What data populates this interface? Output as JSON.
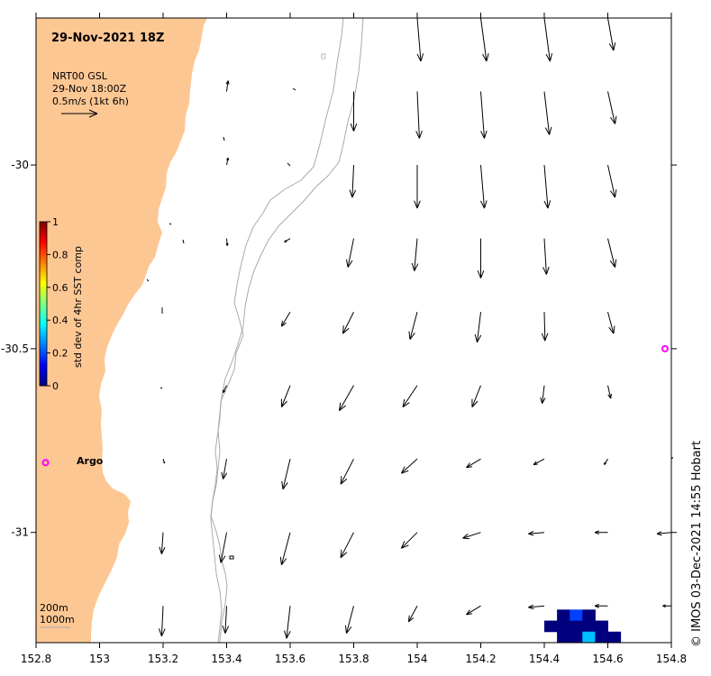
{
  "header": {
    "title": "29-Nov-2021 18Z",
    "product": "NRT00 GSL",
    "time": "29-Nov 18:00Z",
    "scale": "0.5m/s (1kt 6h)"
  },
  "colorbar": {
    "label": "std dev of 4hr SST comp",
    "ticks": [
      "1",
      "0.8",
      "0.6",
      "0.4",
      "0.2",
      "0"
    ]
  },
  "axes": {
    "x_ticks": [
      "152.8",
      "153",
      "153.2",
      "153.4",
      "153.6",
      "153.8",
      "154",
      "154.2",
      "154.4",
      "154.6",
      "154.8"
    ],
    "y_ticks": [
      "-30",
      "-30.5",
      "-31"
    ]
  },
  "markers": {
    "argo_label": "Argo",
    "argo_color": "#ff00ff"
  },
  "legend": {
    "contour_200": "200m",
    "contour_1000": "1000m"
  },
  "credit": "© IMOS 03-Dec-2021 14:55 Hobart",
  "colors": {
    "land": "#fdc794",
    "contour": "#aaaaaa",
    "arrow": "#000000",
    "sst_dark": "#00007f",
    "sst_mid": "#0040ff",
    "sst_light": "#00c0ff"
  },
  "chart_data": {
    "type": "vector-field",
    "xlim": [
      152.8,
      154.8
    ],
    "ylim": [
      -31.3,
      -29.6
    ],
    "colorbar_range": [
      0,
      1
    ],
    "arrows": [
      {
        "lon": 154.0,
        "lat": -29.6,
        "u": 0.05,
        "v": -0.6
      },
      {
        "lon": 154.2,
        "lat": -29.6,
        "u": 0.08,
        "v": -0.6
      },
      {
        "lon": 154.4,
        "lat": -29.6,
        "u": 0.08,
        "v": -0.6
      },
      {
        "lon": 154.6,
        "lat": -29.6,
        "u": 0.08,
        "v": -0.45
      },
      {
        "lon": 153.4,
        "lat": -29.8,
        "u": 0.02,
        "v": 0.15
      },
      {
        "lon": 153.8,
        "lat": -29.8,
        "u": 0.0,
        "v": -0.55
      },
      {
        "lon": 154.0,
        "lat": -29.8,
        "u": 0.03,
        "v": -0.65
      },
      {
        "lon": 154.2,
        "lat": -29.8,
        "u": 0.05,
        "v": -0.65
      },
      {
        "lon": 154.4,
        "lat": -29.8,
        "u": 0.07,
        "v": -0.6
      },
      {
        "lon": 154.6,
        "lat": -29.8,
        "u": 0.1,
        "v": -0.45
      },
      {
        "lon": 153.4,
        "lat": -30.0,
        "u": 0.02,
        "v": 0.1
      },
      {
        "lon": 153.8,
        "lat": -30.0,
        "u": -0.02,
        "v": -0.45
      },
      {
        "lon": 154.0,
        "lat": -30.0,
        "u": 0.0,
        "v": -0.6
      },
      {
        "lon": 154.2,
        "lat": -30.0,
        "u": 0.05,
        "v": -0.6
      },
      {
        "lon": 154.4,
        "lat": -30.0,
        "u": 0.05,
        "v": -0.6
      },
      {
        "lon": 154.6,
        "lat": -30.0,
        "u": 0.1,
        "v": -0.45
      },
      {
        "lon": 153.4,
        "lat": -30.2,
        "u": 0.01,
        "v": -0.1
      },
      {
        "lon": 153.6,
        "lat": -30.2,
        "u": -0.08,
        "v": -0.05
      },
      {
        "lon": 153.8,
        "lat": -30.2,
        "u": -0.08,
        "v": -0.4
      },
      {
        "lon": 154.0,
        "lat": -30.2,
        "u": -0.04,
        "v": -0.45
      },
      {
        "lon": 154.2,
        "lat": -30.2,
        "u": 0.0,
        "v": -0.55
      },
      {
        "lon": 154.4,
        "lat": -30.2,
        "u": 0.03,
        "v": -0.5
      },
      {
        "lon": 154.6,
        "lat": -30.2,
        "u": 0.1,
        "v": -0.4
      },
      {
        "lon": 153.6,
        "lat": -30.4,
        "u": -0.12,
        "v": -0.2
      },
      {
        "lon": 153.8,
        "lat": -30.4,
        "u": -0.15,
        "v": -0.3
      },
      {
        "lon": 154.0,
        "lat": -30.4,
        "u": -0.1,
        "v": -0.38
      },
      {
        "lon": 154.2,
        "lat": -30.4,
        "u": -0.05,
        "v": -0.42
      },
      {
        "lon": 154.4,
        "lat": -30.4,
        "u": 0.01,
        "v": -0.4
      },
      {
        "lon": 154.6,
        "lat": -30.4,
        "u": 0.08,
        "v": -0.3
      },
      {
        "lon": 153.4,
        "lat": -30.6,
        "u": -0.05,
        "v": -0.1
      },
      {
        "lon": 153.6,
        "lat": -30.6,
        "u": -0.12,
        "v": -0.3
      },
      {
        "lon": 153.8,
        "lat": -30.6,
        "u": -0.2,
        "v": -0.35
      },
      {
        "lon": 154.0,
        "lat": -30.6,
        "u": -0.2,
        "v": -0.3
      },
      {
        "lon": 154.2,
        "lat": -30.6,
        "u": -0.12,
        "v": -0.3
      },
      {
        "lon": 154.4,
        "lat": -30.6,
        "u": -0.03,
        "v": -0.25
      },
      {
        "lon": 154.6,
        "lat": -30.6,
        "u": 0.04,
        "v": -0.18
      },
      {
        "lon": 153.2,
        "lat": -30.8,
        "u": 0.02,
        "v": -0.06
      },
      {
        "lon": 153.4,
        "lat": -30.8,
        "u": -0.05,
        "v": -0.28
      },
      {
        "lon": 153.6,
        "lat": -30.8,
        "u": -0.1,
        "v": -0.42
      },
      {
        "lon": 153.8,
        "lat": -30.8,
        "u": -0.18,
        "v": -0.35
      },
      {
        "lon": 154.0,
        "lat": -30.8,
        "u": -0.22,
        "v": -0.2
      },
      {
        "lon": 154.2,
        "lat": -30.8,
        "u": -0.2,
        "v": -0.12
      },
      {
        "lon": 154.4,
        "lat": -30.8,
        "u": -0.15,
        "v": -0.08
      },
      {
        "lon": 154.6,
        "lat": -30.8,
        "u": -0.05,
        "v": -0.08
      },
      {
        "lon": 154.8,
        "lat": -30.8,
        "u": 0.02,
        "v": 0.02
      },
      {
        "lon": 153.2,
        "lat": -31.0,
        "u": -0.02,
        "v": -0.3
      },
      {
        "lon": 153.4,
        "lat": -31.0,
        "u": -0.08,
        "v": -0.42
      },
      {
        "lon": 153.6,
        "lat": -31.0,
        "u": -0.12,
        "v": -0.45
      },
      {
        "lon": 153.8,
        "lat": -31.0,
        "u": -0.18,
        "v": -0.35
      },
      {
        "lon": 154.0,
        "lat": -31.0,
        "u": -0.22,
        "v": -0.22
      },
      {
        "lon": 154.2,
        "lat": -31.0,
        "u": -0.25,
        "v": -0.08
      },
      {
        "lon": 154.4,
        "lat": -31.0,
        "u": -0.22,
        "v": -0.02
      },
      {
        "lon": 154.6,
        "lat": -31.0,
        "u": -0.18,
        "v": 0.0
      },
      {
        "lon": 154.8,
        "lat": -31.0,
        "u": -0.2,
        "v": -0.02
      },
      {
        "lon": 153.2,
        "lat": -31.2,
        "u": -0.02,
        "v": -0.42
      },
      {
        "lon": 153.4,
        "lat": -31.2,
        "u": -0.02,
        "v": -0.38
      },
      {
        "lon": 153.6,
        "lat": -31.2,
        "u": -0.05,
        "v": -0.45
      },
      {
        "lon": 153.8,
        "lat": -31.2,
        "u": -0.1,
        "v": -0.38
      },
      {
        "lon": 154.0,
        "lat": -31.2,
        "u": -0.12,
        "v": -0.22
      },
      {
        "lon": 154.2,
        "lat": -31.2,
        "u": -0.2,
        "v": -0.12
      },
      {
        "lon": 154.4,
        "lat": -31.2,
        "u": -0.22,
        "v": -0.02
      },
      {
        "lon": 154.6,
        "lat": -31.2,
        "u": -0.18,
        "v": 0.0
      },
      {
        "lon": 154.8,
        "lat": -31.2,
        "u": -0.12,
        "v": 0.0
      }
    ],
    "argo_floats": [
      {
        "lon": 152.83,
        "lat": -30.81
      },
      {
        "lon": 154.78,
        "lat": -30.5
      }
    ],
    "sst_std_cells": [
      {
        "lon": 154.46,
        "lat": -31.225,
        "value": 0.05
      },
      {
        "lon": 154.5,
        "lat": -31.225,
        "value": 0.1
      },
      {
        "lon": 154.54,
        "lat": -31.225,
        "value": 0.05
      },
      {
        "lon": 154.42,
        "lat": -31.255,
        "value": 0.05
      },
      {
        "lon": 154.46,
        "lat": -31.255,
        "value": 0.05
      },
      {
        "lon": 154.5,
        "lat": -31.255,
        "value": 0.05
      },
      {
        "lon": 154.54,
        "lat": -31.255,
        "value": 0.05
      },
      {
        "lon": 154.58,
        "lat": -31.255,
        "value": 0.05
      },
      {
        "lon": 154.46,
        "lat": -31.285,
        "value": 0.05
      },
      {
        "lon": 154.5,
        "lat": -31.285,
        "value": 0.05
      },
      {
        "lon": 154.54,
        "lat": -31.285,
        "value": 0.25
      },
      {
        "lon": 154.58,
        "lat": -31.285,
        "value": 0.05
      },
      {
        "lon": 154.62,
        "lat": -31.285,
        "value": 0.05
      }
    ]
  }
}
